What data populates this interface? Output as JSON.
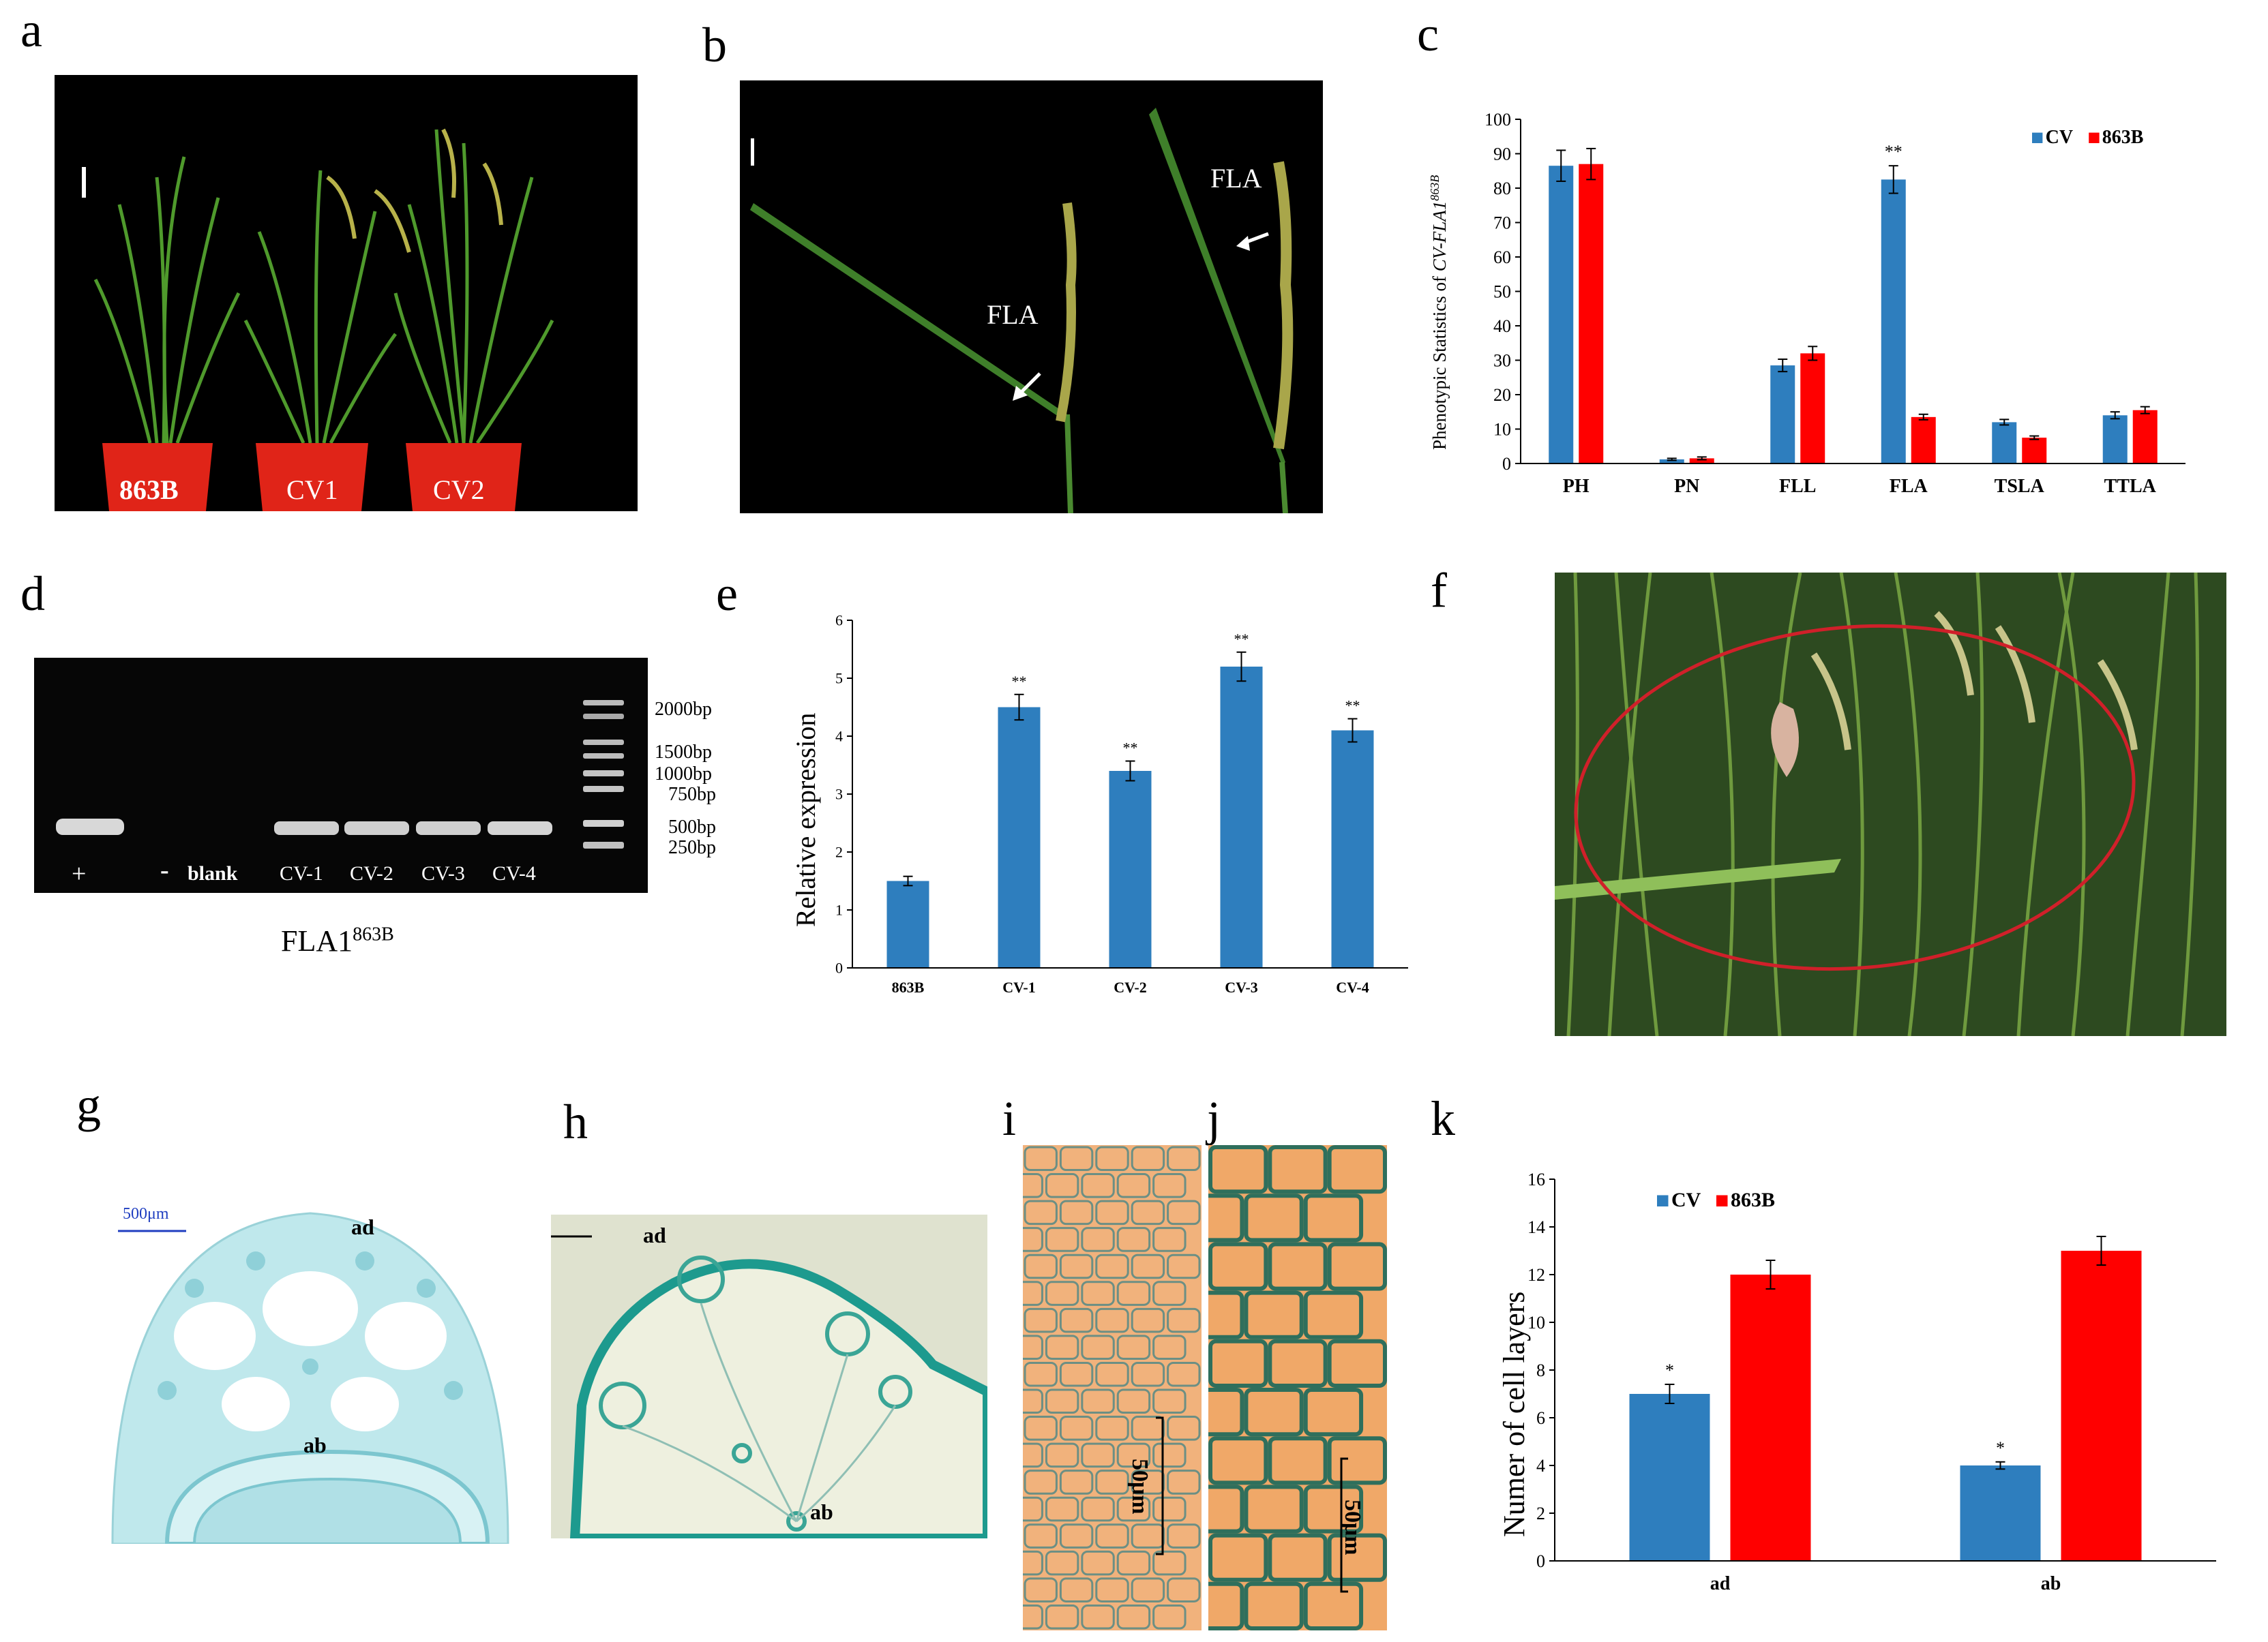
{
  "panel_labels": {
    "a": "a",
    "b": "b",
    "c": "c",
    "d": "d",
    "e": "e",
    "f": "f",
    "g": "g",
    "h": "h",
    "i": "i",
    "j": "j",
    "k": "k"
  },
  "panel_a": {
    "pots": [
      "863B",
      "CV1",
      "CV2"
    ]
  },
  "panel_b": {
    "arrow_labels": [
      "FLA",
      "FLA"
    ]
  },
  "panel_d": {
    "lane_labels": [
      "+",
      "-",
      "blank",
      "CV-1",
      "CV-2",
      "CV-3",
      "CV-4"
    ],
    "ladder": [
      "2000bp",
      "1500bp",
      "1000bp",
      "750bp",
      "500bp",
      "250bp"
    ],
    "caption_main": "FLA1",
    "caption_sup": "863B"
  },
  "panel_g": {
    "scale": "500μm",
    "ad": "ad",
    "ab": "ab"
  },
  "panel_h": {
    "ad": "ad",
    "ab": "ab"
  },
  "panel_i": {
    "scale": "50μm"
  },
  "panel_j": {
    "scale": "50μm"
  },
  "colors": {
    "blue": "#2e7ebe",
    "red": "#ff0000"
  },
  "chart_data": [
    {
      "id": "c",
      "type": "bar",
      "categories": [
        "PH",
        "PN",
        "FLL",
        "FLA",
        "TSLA",
        "TTLA"
      ],
      "series": [
        {
          "name": "CV",
          "color": "#2e7ebe",
          "values": [
            86.5,
            1.2,
            28.5,
            82.5,
            12,
            14
          ],
          "errors": [
            4.5,
            0.3,
            1.8,
            4,
            0.8,
            1
          ]
        },
        {
          "name": "863B",
          "color": "#ff0000",
          "values": [
            87,
            1.5,
            32,
            13.5,
            7.5,
            15.5
          ],
          "errors": [
            4.5,
            0.4,
            2,
            0.8,
            0.5,
            1
          ]
        }
      ],
      "ylabel_main": "Phenotypic Statistics of ",
      "ylabel_italic": "CV-FLA1",
      "ylabel_sup": "863B",
      "ylim": [
        0,
        100
      ],
      "yticks": [
        0,
        10,
        20,
        30,
        40,
        50,
        60,
        70,
        80,
        90,
        100
      ],
      "annotations": [
        {
          "category": "FLA",
          "text": "**"
        }
      ],
      "legend": "top-right"
    },
    {
      "id": "e",
      "type": "bar",
      "categories": [
        "863B",
        "CV-1",
        "CV-2",
        "CV-3",
        "CV-4"
      ],
      "series": [
        {
          "color": "#2e7ebe",
          "values": [
            1.5,
            4.5,
            3.4,
            5.2,
            4.1
          ],
          "errors": [
            0.08,
            0.22,
            0.17,
            0.25,
            0.2
          ]
        }
      ],
      "ylabel": "Relative expression",
      "ylim": [
        0,
        6
      ],
      "yticks": [
        0,
        1,
        2,
        3,
        4,
        5,
        6
      ],
      "annotations": [
        "",
        "**",
        "**",
        "**",
        "**"
      ]
    },
    {
      "id": "k",
      "type": "bar",
      "categories": [
        "ad",
        "ab"
      ],
      "series": [
        {
          "name": "CV",
          "color": "#2e7ebe",
          "values": [
            7,
            4
          ],
          "errors": [
            0.4,
            0.15
          ]
        },
        {
          "name": "863B",
          "color": "#ff0000",
          "values": [
            12,
            13
          ],
          "errors": [
            0.6,
            0.6
          ]
        }
      ],
      "ylabel": "Numer of cell layers",
      "ylim": [
        0,
        16
      ],
      "yticks": [
        0,
        2,
        4,
        6,
        8,
        10,
        12,
        14,
        16
      ],
      "annotations": [
        {
          "category": "ad",
          "text": "*"
        },
        {
          "category": "ab",
          "text": "*"
        }
      ],
      "legend": "top-left"
    }
  ]
}
